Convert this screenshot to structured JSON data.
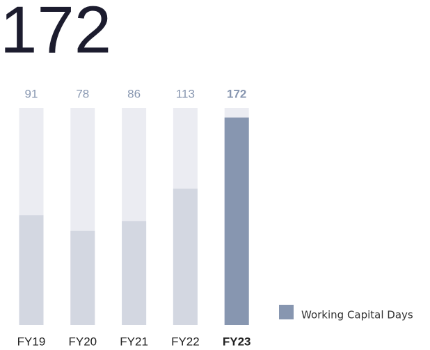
{
  "chart_data": {
    "type": "bar",
    "title": "172",
    "categories": [
      "FY19",
      "FY20",
      "FY21",
      "FY22",
      "FY23"
    ],
    "series": [
      {
        "name": "Working Capital Days",
        "color": "#8796b0",
        "values": [
          91,
          78,
          86,
          113,
          172
        ]
      }
    ],
    "muted_color": "#d3d7e1",
    "track_color": "#ebecf2",
    "highlight_index": 4,
    "ylim": [
      0,
      180
    ]
  }
}
